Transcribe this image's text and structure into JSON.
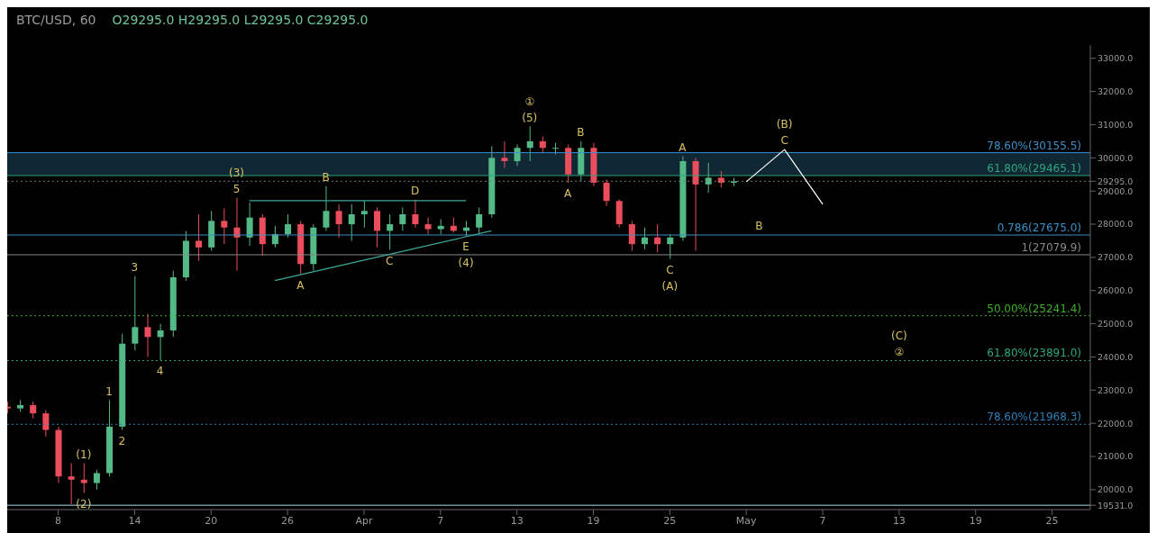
{
  "chart_data": {
    "type": "candlestick",
    "title": "BTC/USD, 60",
    "subtitle": "O29295.0 H29295.0 L29295.0 C29295.0",
    "x": [
      "--03-04",
      "--03-05",
      "--03-06",
      "--03-07",
      "--03-08",
      "--03-09",
      "--03-10",
      "--03-11",
      "--03-12",
      "--03-13",
      "--03-14",
      "--03-15",
      "--03-16",
      "--03-17",
      "--03-18",
      "--03-19",
      "--03-20",
      "--03-21",
      "--03-22",
      "--03-23",
      "--03-24",
      "--03-25",
      "--03-26",
      "--03-27",
      "--03-28",
      "--03-29",
      "--03-30",
      "--03-31",
      "--04-01",
      "--04-02",
      "--04-03",
      "--04-04",
      "--04-05",
      "--04-06",
      "--04-07",
      "--04-08",
      "--04-09",
      "--04-10",
      "--04-11",
      "--04-12",
      "--04-13",
      "--04-14",
      "--04-15",
      "--04-16",
      "--04-17",
      "--04-18",
      "--04-19",
      "--04-20",
      "--04-21",
      "--04-22",
      "--04-23",
      "--04-24",
      "--04-25",
      "--04-26",
      "--04-27",
      "--04-28",
      "--04-29",
      "--04-30"
    ],
    "ohlc": [
      [
        22500,
        22650,
        22300,
        22450
      ],
      [
        22450,
        22700,
        22350,
        22550
      ],
      [
        22550,
        22650,
        22150,
        22300
      ],
      [
        22300,
        22400,
        21600,
        21800
      ],
      [
        21800,
        21900,
        20200,
        20400
      ],
      [
        20400,
        20800,
        19560,
        20300
      ],
      [
        20300,
        20800,
        19900,
        20200
      ],
      [
        20200,
        20600,
        20000,
        20500
      ],
      [
        20500,
        22700,
        20400,
        21900
      ],
      [
        21900,
        24700,
        21800,
        24400
      ],
      [
        24400,
        26430,
        24200,
        24900
      ],
      [
        24900,
        25300,
        24000,
        24600
      ],
      [
        24600,
        25000,
        23900,
        24800
      ],
      [
        24800,
        26600,
        24600,
        26400
      ],
      [
        26400,
        27800,
        26300,
        27500
      ],
      [
        27500,
        28300,
        26900,
        27300
      ],
      [
        27300,
        28400,
        27200,
        28100
      ],
      [
        28100,
        28480,
        27400,
        27900
      ],
      [
        27900,
        28800,
        26600,
        27600
      ],
      [
        27600,
        28650,
        27350,
        28200
      ],
      [
        28200,
        28300,
        27050,
        27400
      ],
      [
        27400,
        27950,
        27300,
        27700
      ],
      [
        27700,
        28300,
        27600,
        28000
      ],
      [
        28000,
        28100,
        26500,
        26800
      ],
      [
        26800,
        28000,
        26600,
        27900
      ],
      [
        27900,
        29150,
        27800,
        28400
      ],
      [
        28400,
        28600,
        27600,
        28000
      ],
      [
        28000,
        28600,
        27500,
        28300
      ],
      [
        28300,
        28700,
        27900,
        28400
      ],
      [
        28400,
        28500,
        27300,
        27800
      ],
      [
        27800,
        28300,
        27230,
        28000
      ],
      [
        28000,
        28500,
        27800,
        28300
      ],
      [
        28300,
        28740,
        27900,
        28000
      ],
      [
        28000,
        28200,
        27700,
        27850
      ],
      [
        27850,
        28150,
        27700,
        27950
      ],
      [
        27950,
        28200,
        27750,
        27800
      ],
      [
        27800,
        28100,
        27650,
        27900
      ],
      [
        27900,
        28500,
        27700,
        28300
      ],
      [
        28300,
        30350,
        28200,
        30000
      ],
      [
        30000,
        30500,
        29700,
        29900
      ],
      [
        29900,
        30400,
        29750,
        30300
      ],
      [
        30300,
        30950,
        29900,
        30500
      ],
      [
        30500,
        30650,
        30150,
        30300
      ],
      [
        30300,
        30450,
        30100,
        30300
      ],
      [
        30300,
        30400,
        29250,
        29500
      ],
      [
        29500,
        30500,
        29300,
        30300
      ],
      [
        30300,
        30450,
        29150,
        29250
      ],
      [
        29250,
        29350,
        28550,
        28700
      ],
      [
        28700,
        28750,
        27900,
        28000
      ],
      [
        28000,
        28100,
        27200,
        27400
      ],
      [
        27400,
        27900,
        27250,
        27600
      ],
      [
        27600,
        28000,
        27150,
        27400
      ],
      [
        27400,
        27700,
        26950,
        27600
      ],
      [
        27600,
        30050,
        27500,
        29900
      ],
      [
        29900,
        30000,
        27200,
        29200
      ],
      [
        29200,
        29850,
        28950,
        29400
      ],
      [
        29400,
        29600,
        29100,
        29250
      ],
      [
        29250,
        29400,
        29150,
        29295
      ]
    ],
    "series": [
      {
        "type": "line",
        "color": "#3fa99b",
        "x": [
          "--03-23",
          "--04-09"
        ],
        "values": [
          28710,
          28710
        ]
      },
      {
        "type": "line",
        "color": "#3fa99b",
        "x": [
          "--03-25",
          "--04-11"
        ],
        "values": [
          26300,
          27800
        ]
      },
      {
        "type": "line",
        "color": "#ffffff",
        "x": [
          "--05-01",
          "--05-04",
          "--05-07"
        ],
        "values": [
          29280,
          30250,
          28600
        ]
      }
    ],
    "xlim": [
      "--03-04",
      "--05-28"
    ],
    "xticks": [
      {
        "value": "--03-08",
        "label": "8"
      },
      {
        "value": "--03-14",
        "label": "14"
      },
      {
        "value": "--03-20",
        "label": "20"
      },
      {
        "value": "--03-26",
        "label": "26"
      },
      {
        "value": "--04-01",
        "label": "Apr"
      },
      {
        "value": "--04-07",
        "label": "7"
      },
      {
        "value": "--04-13",
        "label": "13"
      },
      {
        "value": "--04-19",
        "label": "19"
      },
      {
        "value": "--04-25",
        "label": "25"
      },
      {
        "value": "--05-01",
        "label": "May"
      },
      {
        "value": "--05-07",
        "label": "7"
      },
      {
        "value": "--05-13",
        "label": "13"
      },
      {
        "value": "--05-19",
        "label": "19"
      },
      {
        "value": "--05-25",
        "label": "25"
      }
    ],
    "ylim": [
      19400,
      33400
    ],
    "yticks": [
      {
        "value": 19531,
        "label": "19531.0"
      },
      {
        "value": 20000,
        "label": "20000.0"
      },
      {
        "value": 21000,
        "label": "21000.0"
      },
      {
        "value": 22000,
        "label": "22000.0"
      },
      {
        "value": 23000,
        "label": "23000.0"
      },
      {
        "value": 24000,
        "label": "24000.0"
      },
      {
        "value": 25000,
        "label": "25000.0"
      },
      {
        "value": 26000,
        "label": "26000.0"
      },
      {
        "value": 27000,
        "label": "27000.0"
      },
      {
        "value": 28000,
        "label": "28000.0"
      },
      {
        "value": 29000,
        "label": "29000.0"
      },
      {
        "value": 29295,
        "label": "29295.0"
      },
      {
        "value": 30000,
        "label": "30000.0"
      },
      {
        "value": 31000,
        "label": "31000.0"
      },
      {
        "value": 32000,
        "label": "32000.0"
      },
      {
        "value": 33000,
        "label": "33000.0"
      }
    ],
    "bands": [
      {
        "axis": "y",
        "from": 29465.1,
        "to": 30155.5,
        "color": "#17384a"
      }
    ],
    "ref_lines": [
      {
        "axis": "y",
        "value": 30155.5,
        "label": "78.60%(30155.5)",
        "color": "#3b8fc7",
        "line_style": "solid"
      },
      {
        "axis": "y",
        "value": 29465.1,
        "label": "61.80%(29465.1)",
        "color": "#2ea57e",
        "line_style": "solid"
      },
      {
        "axis": "y",
        "value": 27675.0,
        "label": "0.786(27675.0)",
        "color": "#3b8fc7",
        "line_style": "solid"
      },
      {
        "axis": "y",
        "value": 27079.9,
        "label": "1(27079.9)",
        "color": "#888888",
        "line_style": "solid"
      },
      {
        "axis": "y",
        "value": 25241.4,
        "label": "50.00%(25241.4)",
        "color": "#3fae2a",
        "line_style": "dotted"
      },
      {
        "axis": "y",
        "value": 23891.0,
        "label": "61.80%(23891.0)",
        "color": "#2ea57e",
        "line_style": "dotted"
      },
      {
        "axis": "y",
        "value": 21968.3,
        "label": "78.60%(21968.3)",
        "color": "#2d7fb8",
        "line_style": "dotted"
      },
      {
        "axis": "y",
        "value": 29295,
        "color": "#777777",
        "line_style": "dotted"
      },
      {
        "axis": "y",
        "value": 19531,
        "color": "#a8dde6",
        "line_style": "solid"
      }
    ],
    "annotations": [
      {
        "text": "(1)",
        "x": "--03-10",
        "y": 20800
      },
      {
        "text": "(2)",
        "x": "--03-10",
        "y": 19900
      },
      {
        "text": "1",
        "x": "--03-12",
        "y": 22700
      },
      {
        "text": "2",
        "x": "--03-13",
        "y": 21800
      },
      {
        "text": "3",
        "x": "--03-14",
        "y": 26430
      },
      {
        "text": "4",
        "x": "--03-16",
        "y": 23900
      },
      {
        "text": "5",
        "x": "--03-22",
        "y": 28800
      },
      {
        "text": "(3)",
        "x": "--03-22",
        "y": 28800
      },
      {
        "text": "A",
        "x": "--03-27",
        "y": 26500
      },
      {
        "text": "B",
        "x": "--03-29",
        "y": 29150
      },
      {
        "text": "C",
        "x": "--04-03",
        "y": 27230
      },
      {
        "text": "D",
        "x": "--04-05",
        "y": 28740
      },
      {
        "text": "E",
        "x": "--04-09",
        "y": 27650
      },
      {
        "text": "(4)",
        "x": "--04-09",
        "y": 27650
      },
      {
        "text": "(5)",
        "x": "--04-14",
        "y": 30950
      },
      {
        "text": "①",
        "x": "--04-14",
        "y": 30950
      },
      {
        "text": "A",
        "x": "--04-17",
        "y": 29250
      },
      {
        "text": "B",
        "x": "--04-18",
        "y": 30500
      },
      {
        "text": "C",
        "x": "--04-25",
        "y": 26950
      },
      {
        "text": "(A)",
        "x": "--04-25",
        "y": 26950
      },
      {
        "text": "A",
        "x": "--04-26",
        "y": 30050
      },
      {
        "text": "B",
        "x": "--05-02",
        "y": 27675
      },
      {
        "text": "C",
        "x": "--05-04",
        "y": 30250
      },
      {
        "text": "(B)",
        "x": "--05-04",
        "y": 30250
      },
      {
        "text": "②",
        "x": "--05-13",
        "y": 23891
      },
      {
        "text": "(C)",
        "x": "--05-13",
        "y": 23891
      }
    ]
  }
}
